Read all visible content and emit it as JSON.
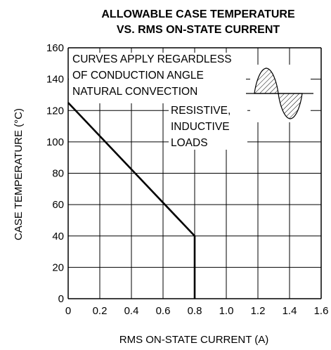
{
  "chart_data": {
    "type": "line",
    "title_lines": [
      "ALLOWABLE CASE TEMPERATURE",
      "VS. RMS ON-STATE CURRENT"
    ],
    "xlabel": "RMS ON-STATE CURRENT  (A)",
    "ylabel": "CASE TEMPERATURE  (°C)",
    "xlim": [
      0,
      1.6
    ],
    "ylim": [
      0,
      160
    ],
    "x_ticks": [
      "0",
      "0.2",
      "0.4",
      "0.6",
      "0.8",
      "1.0",
      "1.2",
      "1.4",
      "1.6"
    ],
    "y_ticks": [
      "0",
      "20",
      "40",
      "60",
      "80",
      "100",
      "120",
      "140",
      "160"
    ],
    "grid": true,
    "annotations": {
      "line1": "CURVES APPLY REGARDLESS",
      "line2": "OF CONDUCTION ANGLE",
      "line3": "NATURAL CONVECTION",
      "load1": "RESISTIVE,",
      "load2": "INDUCTIVE",
      "load3": "LOADS"
    },
    "series": [
      {
        "x": [
          0,
          0.8,
          0.8
        ],
        "y": [
          125,
          40,
          0
        ]
      }
    ]
  }
}
